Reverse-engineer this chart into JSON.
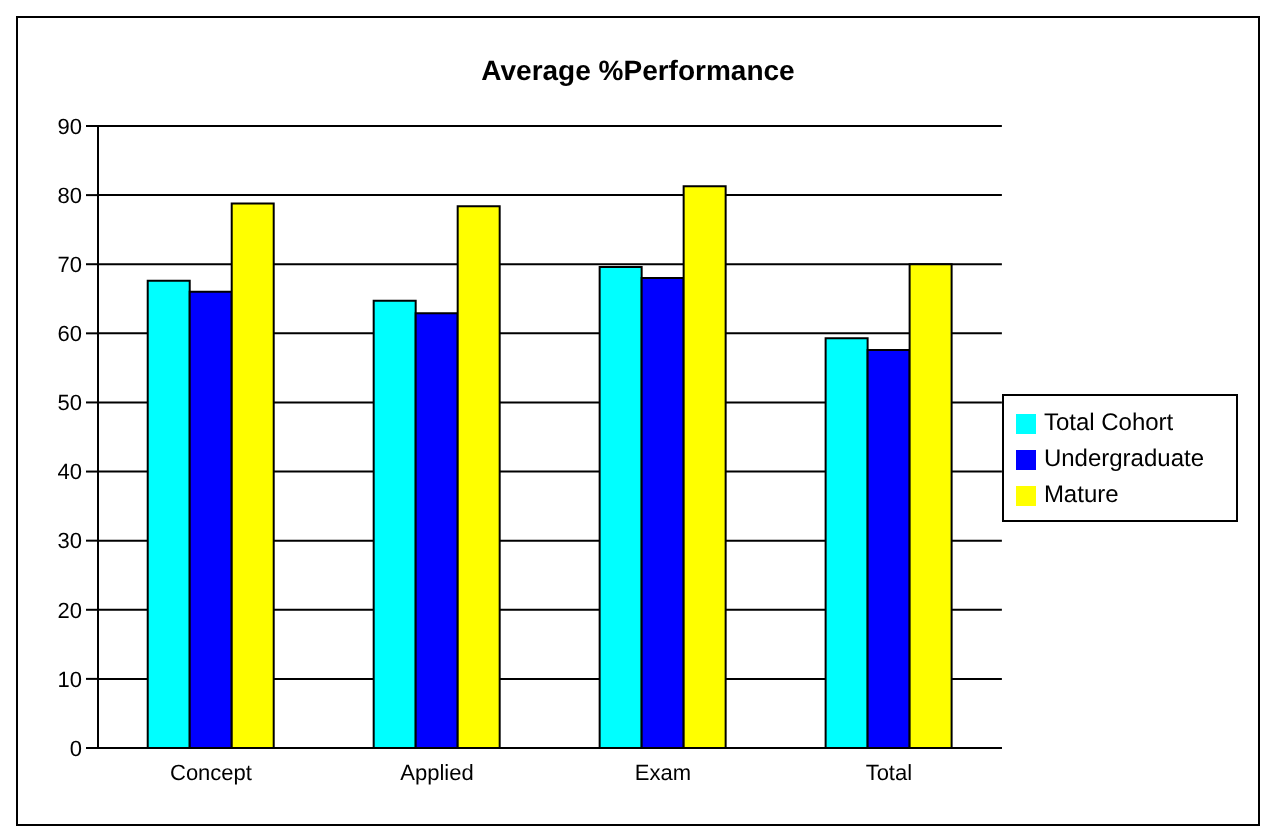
{
  "chart_data": {
    "type": "bar",
    "title": "Average %Performance",
    "categories": [
      "Concept",
      "Applied",
      "Exam",
      "Total"
    ],
    "series": [
      {
        "name": "Total Cohort",
        "color": "#00ffff",
        "values": [
          67.6,
          64.7,
          69.6,
          59.3
        ]
      },
      {
        "name": "Undergraduate",
        "color": "#0000ff",
        "values": [
          66.0,
          62.9,
          68.0,
          57.6
        ]
      },
      {
        "name": "Mature",
        "color": "#ffff00",
        "values": [
          78.8,
          78.4,
          81.3,
          70.0
        ]
      }
    ],
    "ylim": [
      0,
      90
    ],
    "yticks": [
      0,
      10,
      20,
      30,
      40,
      50,
      60,
      70,
      80,
      90
    ],
    "grid": "y",
    "legend": "right"
  }
}
